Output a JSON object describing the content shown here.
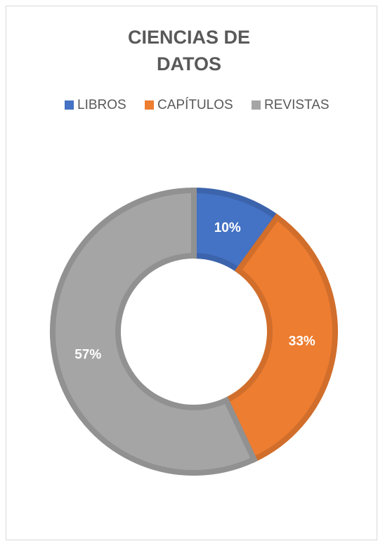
{
  "chart_data": {
    "type": "donut",
    "title": "CIENCIAS DE DATOS",
    "categories": [
      "LIBROS",
      "CAPÍTULOS",
      "REVISTAS"
    ],
    "values": [
      10,
      33,
      57
    ],
    "value_labels": [
      "10%",
      "33%",
      "57%"
    ],
    "colors": [
      "#4472c4",
      "#ed7d31",
      "#a5a5a5"
    ],
    "legend": "top"
  }
}
